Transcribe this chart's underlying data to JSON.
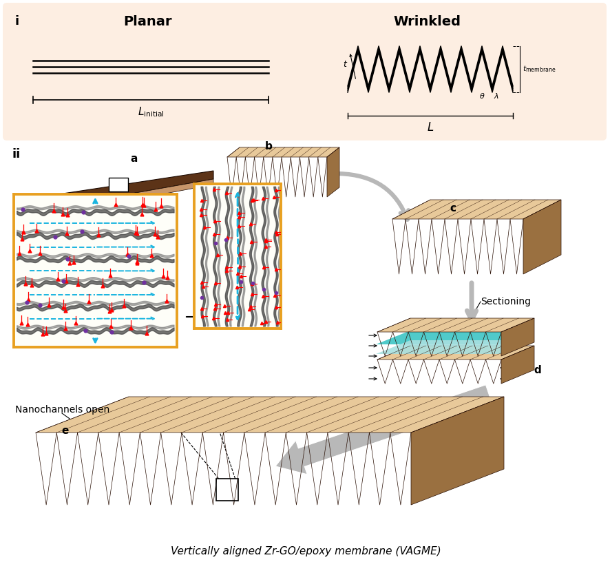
{
  "bg_top": "#fdeee2",
  "brown_dark": "#5c3317",
  "brown_mid": "#7b4a1e",
  "tan_light": "#c8966a",
  "tan_lighter": "#ddb880",
  "tan_top": "#e8c99a",
  "cyan_color": "#3dc5c5",
  "arrow_gray": "#b8b8b8",
  "gold_border": "#e8a020",
  "title_i": "i",
  "title_ii": "ii",
  "label_planar": "Planar",
  "label_wrinkled": "Wrinkled",
  "label_a": "a",
  "label_b": "b",
  "label_c": "c",
  "label_d": "d",
  "label_e": "e",
  "label_nanochannels": "Nanochannels open",
  "label_sectioning": "Sectioning",
  "label_vagme": "Vertically aligned Zr-GO/epoxy membrane (VAGME)"
}
